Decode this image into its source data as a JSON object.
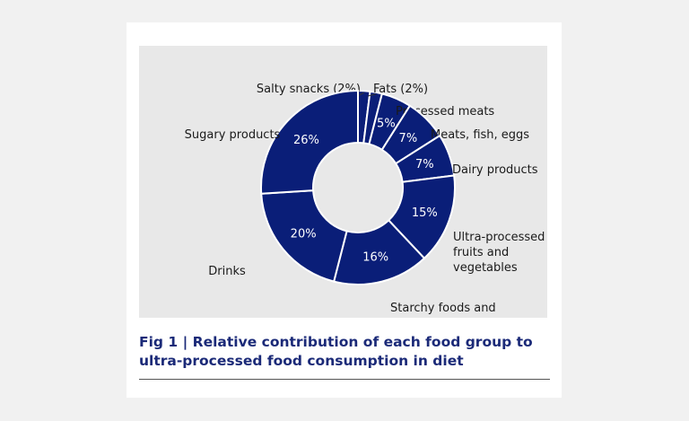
{
  "colors": {
    "slice_fill": "#0a1e78",
    "slice_stroke": "#ffffff",
    "caption_color": "#1b2a78",
    "background": "#e8e8e8"
  },
  "chart_data": {
    "type": "pie",
    "variant": "donut",
    "series": [
      {
        "name": "Salty snacks",
        "value": 2,
        "label": "Salty snacks (2%)",
        "pct_label": ""
      },
      {
        "name": "Fats",
        "value": 2,
        "label": "Fats (2%)",
        "pct_label": ""
      },
      {
        "name": "Processed meats",
        "value": 5,
        "label": "Processed meats",
        "pct_label": "5%"
      },
      {
        "name": "Meats, fish, eggs",
        "value": 7,
        "label": "Meats, fish, eggs",
        "pct_label": "7%"
      },
      {
        "name": "Dairy products",
        "value": 7,
        "label": "Dairy products",
        "pct_label": "7%"
      },
      {
        "name": "Ultra-processed fruits and vegetables",
        "value": 15,
        "label": "Ultra-processed\nfruits and\nvegetables",
        "pct_label": "15%"
      },
      {
        "name": "Starchy foods and breakfast cereals",
        "value": 16,
        "label": "Starchy foods and\nbreakfast cereals",
        "pct_label": "16%"
      },
      {
        "name": "Drinks",
        "value": 20,
        "label": "Drinks",
        "pct_label": "20%"
      },
      {
        "name": "Sugary products",
        "value": 26,
        "label": "Sugary products",
        "pct_label": "26%"
      }
    ],
    "caption_prefix": "Fig 1",
    "caption_separator": "|",
    "title": "Relative contribution of each food group to ultra-processed food consumption in diet"
  }
}
